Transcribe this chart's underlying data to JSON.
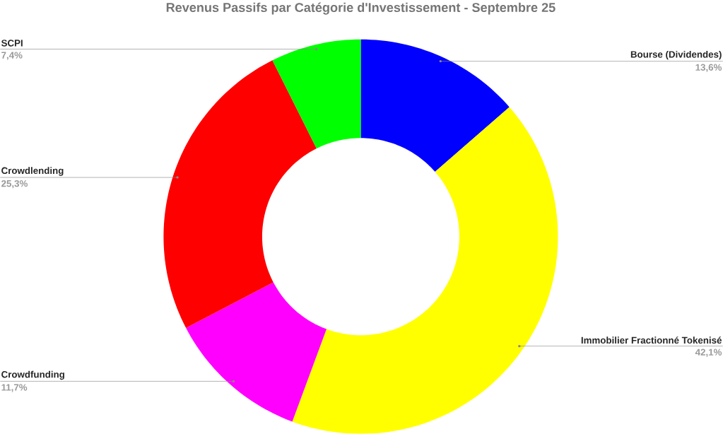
{
  "chart_data": {
    "type": "donut",
    "title": "Revenus Passifs par Catégorie d'Investissement - Septembre 25",
    "categories": [
      "Bourse (Dividendes)",
      "Immobilier Fractionné Tokenisé",
      "Crowdfunding",
      "Crowdlending",
      "SCPI"
    ],
    "values": [
      13.6,
      42.1,
      11.7,
      25.3,
      7.4
    ],
    "colors": [
      "#0000ff",
      "#ffff00",
      "#ff00ff",
      "#ff0000",
      "#00ff00"
    ],
    "value_labels": [
      "13,6%",
      "42,1%",
      "11,7%",
      "25,3%",
      "7,4%"
    ]
  }
}
